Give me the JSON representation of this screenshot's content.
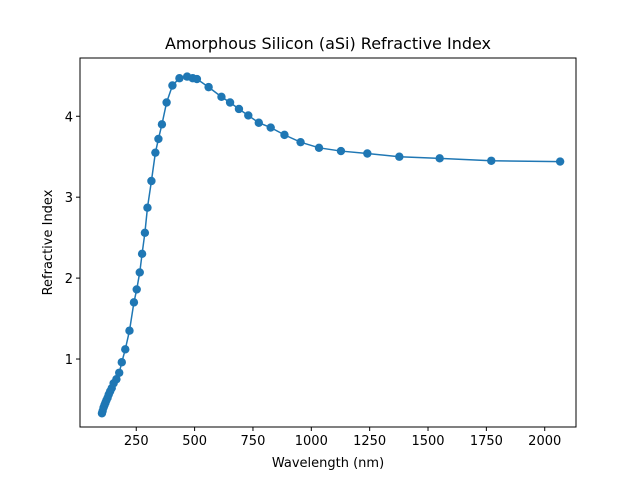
{
  "chart_data": {
    "type": "line",
    "title": "Amorphous Silicon (aSi) Refractive Index",
    "xlabel": "Wavelength (nm)",
    "ylabel": "Refractive Index",
    "xlim": [
      9,
      2134
    ],
    "ylim": [
      0.16,
      4.72
    ],
    "xticks": [
      250,
      500,
      750,
      1000,
      1250,
      1500,
      1750,
      2000
    ],
    "yticks": [
      1,
      2,
      3,
      4
    ],
    "grid": false,
    "marker": "circle",
    "color": "#1f77b4",
    "series": [
      {
        "x": [
          103,
          106,
          110,
          114,
          118,
          122,
          127,
          132,
          138,
          145,
          153,
          165,
          177,
          188,
          203,
          221,
          240,
          252,
          265,
          275,
          287,
          298,
          315,
          332,
          345,
          360,
          380,
          405,
          435,
          468,
          492,
          510,
          560,
          615,
          652,
          690,
          730,
          775,
          826,
          885,
          954,
          1033,
          1127,
          1240,
          1377,
          1550,
          1771,
          2066
        ],
        "y": [
          0.33,
          0.36,
          0.4,
          0.43,
          0.46,
          0.49,
          0.52,
          0.56,
          0.6,
          0.64,
          0.7,
          0.75,
          0.83,
          0.96,
          1.12,
          1.35,
          1.7,
          1.86,
          2.07,
          2.3,
          2.56,
          2.87,
          3.2,
          3.55,
          3.72,
          3.9,
          4.17,
          4.38,
          4.47,
          4.49,
          4.47,
          4.46,
          4.36,
          4.24,
          4.17,
          4.09,
          4.01,
          3.92,
          3.86,
          3.77,
          3.68,
          3.61,
          3.57,
          3.54,
          3.5,
          3.48,
          3.45,
          3.44
        ]
      }
    ]
  }
}
